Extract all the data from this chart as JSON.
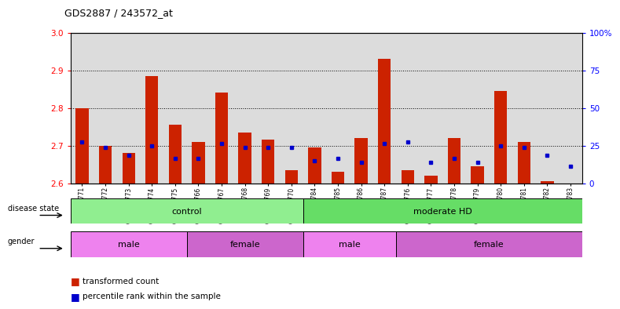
{
  "title": "GDS2887 / 243572_at",
  "samples": [
    "GSM217771",
    "GSM217772",
    "GSM217773",
    "GSM217774",
    "GSM217775",
    "GSM217766",
    "GSM217767",
    "GSM217768",
    "GSM217769",
    "GSM217770",
    "GSM217784",
    "GSM217785",
    "GSM217786",
    "GSM217787",
    "GSM217776",
    "GSM217777",
    "GSM217778",
    "GSM217779",
    "GSM217780",
    "GSM217781",
    "GSM217782",
    "GSM217783"
  ],
  "red_values": [
    2.8,
    2.7,
    2.68,
    2.885,
    2.755,
    2.71,
    2.84,
    2.735,
    2.715,
    2.635,
    2.695,
    2.63,
    2.72,
    2.93,
    2.635,
    2.62,
    2.72,
    2.645,
    2.845,
    2.71,
    2.605,
    2.6
  ],
  "blue_values": [
    2.71,
    2.695,
    2.675,
    2.7,
    2.665,
    2.665,
    2.705,
    2.695,
    2.695,
    2.695,
    2.66,
    2.665,
    2.655,
    2.705,
    2.71,
    2.655,
    2.665,
    2.655,
    2.7,
    2.695,
    2.675,
    2.645
  ],
  "ylim": [
    2.6,
    3.0
  ],
  "yticks_left": [
    2.6,
    2.7,
    2.8,
    2.9,
    3.0
  ],
  "yticks_right_vals": [
    0,
    25,
    50,
    75,
    100
  ],
  "yticks_right_positions": [
    2.6,
    2.7,
    2.8,
    2.9,
    3.0
  ],
  "grid_lines": [
    2.7,
    2.8,
    2.9
  ],
  "disease_state_groups": [
    {
      "label": "control",
      "start": 0,
      "end": 10,
      "color": "#90EE90"
    },
    {
      "label": "moderate HD",
      "start": 10,
      "end": 22,
      "color": "#66DD66"
    }
  ],
  "gender_groups": [
    {
      "label": "male",
      "start": 0,
      "end": 5,
      "color": "#EE82EE"
    },
    {
      "label": "female",
      "start": 5,
      "end": 10,
      "color": "#CC66CC"
    },
    {
      "label": "male",
      "start": 10,
      "end": 14,
      "color": "#EE82EE"
    },
    {
      "label": "female",
      "start": 14,
      "end": 22,
      "color": "#CC66CC"
    }
  ],
  "bar_color": "#CC2200",
  "dot_color": "#0000CC",
  "bg_color": "#DCDCDC",
  "legend_red": "transformed count",
  "legend_blue": "percentile rank within the sample"
}
